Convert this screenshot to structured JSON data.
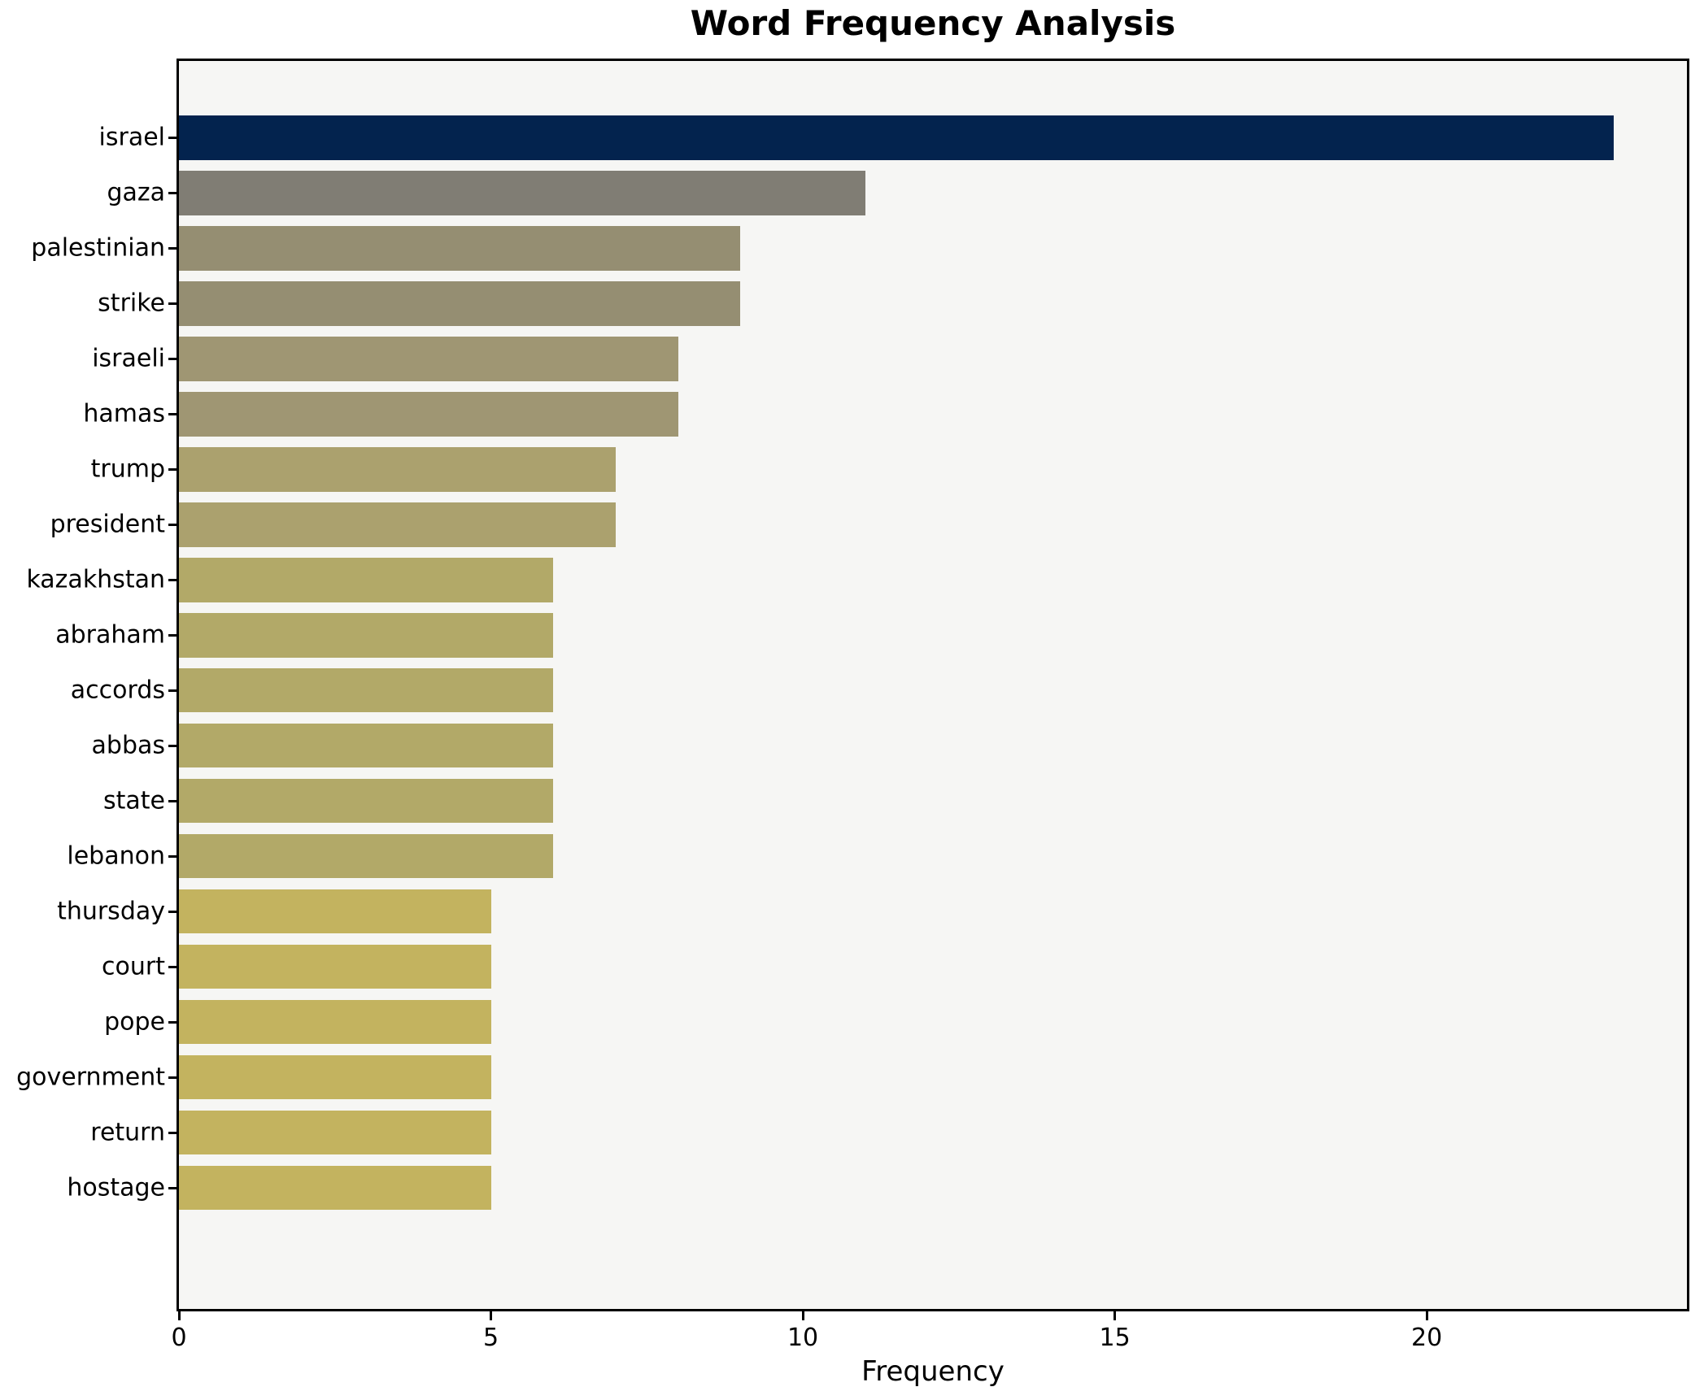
{
  "chart_data": {
    "type": "bar",
    "orientation": "horizontal",
    "title": "Word Frequency Analysis",
    "xlabel": "Frequency",
    "ylabel": "",
    "categories": [
      "israel",
      "gaza",
      "palestinian",
      "strike",
      "israeli",
      "hamas",
      "trump",
      "president",
      "kazakhstan",
      "abraham",
      "accords",
      "abbas",
      "state",
      "lebanon",
      "thursday",
      "court",
      "pope",
      "government",
      "return",
      "hostage"
    ],
    "values": [
      23,
      11,
      9,
      9,
      8,
      8,
      7,
      7,
      6,
      6,
      6,
      6,
      6,
      6,
      5,
      5,
      5,
      5,
      5,
      5
    ],
    "bar_colors": [
      "#03234e",
      "#807d74",
      "#958e72",
      "#958e72",
      "#9f9673",
      "#9f9673",
      "#aba16e",
      "#aba16e",
      "#b2a968",
      "#b2a968",
      "#b2a968",
      "#b2a968",
      "#b2a968",
      "#b2a968",
      "#c3b35f",
      "#c3b35f",
      "#c3b35f",
      "#c3b35f",
      "#c3b35f",
      "#c3b35f"
    ],
    "xticks": [
      0,
      5,
      10,
      15,
      20
    ],
    "xlim": [
      0,
      24.17
    ],
    "grid": false,
    "legend": "none",
    "plot_bg": "#f6f6f4",
    "fig_bg": "#ffffff",
    "spine_color": "#000000",
    "text_color": "#000000"
  }
}
